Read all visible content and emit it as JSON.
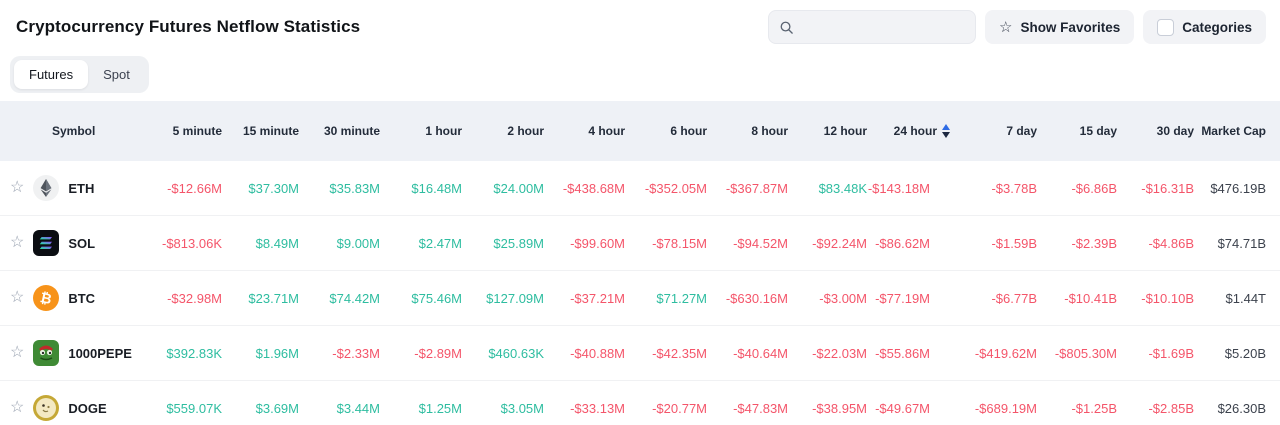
{
  "page": {
    "title": "Cryptocurrency Futures Netflow Statistics"
  },
  "controls": {
    "search": {
      "placeholder": "",
      "value": "",
      "icon": "search-icon"
    },
    "show_favorites": {
      "label": "Show Favorites",
      "icon": "star-icon"
    },
    "categories": {
      "label": "Categories",
      "checked": false
    }
  },
  "tabs": [
    {
      "label": "Futures",
      "active": true
    },
    {
      "label": "Spot",
      "active": false
    }
  ],
  "table": {
    "columns": [
      "Symbol",
      "5 minute",
      "15 minute",
      "30 minute",
      "1 hour",
      "2 hour",
      "4 hour",
      "6 hour",
      "8 hour",
      "12 hour",
      "24 hour",
      "7 day",
      "15 day",
      "30 day",
      "Market Cap"
    ],
    "sorted_column": "24 hour",
    "rows": [
      {
        "symbol": "ETH",
        "icon": "eth-icon",
        "favorited": false,
        "values": [
          "-$12.66M",
          "$37.30M",
          "$35.83M",
          "$16.48M",
          "$24.00M",
          "-$438.68M",
          "-$352.05M",
          "-$367.87M",
          "$83.48K",
          "-$143.18M",
          "-$3.78B",
          "-$6.86B",
          "-$16.31B"
        ],
        "market_cap": "$476.19B"
      },
      {
        "symbol": "SOL",
        "icon": "sol-icon",
        "favorited": false,
        "values": [
          "-$813.06K",
          "$8.49M",
          "$9.00M",
          "$2.47M",
          "$25.89M",
          "-$99.60M",
          "-$78.15M",
          "-$94.52M",
          "-$92.24M",
          "-$86.62M",
          "-$1.59B",
          "-$2.39B",
          "-$4.86B"
        ],
        "market_cap": "$74.71B"
      },
      {
        "symbol": "BTC",
        "icon": "btc-icon",
        "favorited": false,
        "values": [
          "-$32.98M",
          "$23.71M",
          "$74.42M",
          "$75.46M",
          "$127.09M",
          "-$37.21M",
          "$71.27M",
          "-$630.16M",
          "-$3.00M",
          "-$77.19M",
          "-$6.77B",
          "-$10.41B",
          "-$10.10B"
        ],
        "market_cap": "$1.44T"
      },
      {
        "symbol": "1000PEPE",
        "icon": "pepe-icon",
        "favorited": false,
        "values": [
          "$392.83K",
          "$1.96M",
          "-$2.33M",
          "-$2.89M",
          "$460.63K",
          "-$40.88M",
          "-$42.35M",
          "-$40.64M",
          "-$22.03M",
          "-$55.86M",
          "-$419.62M",
          "-$805.30M",
          "-$1.69B"
        ],
        "market_cap": "$5.20B"
      },
      {
        "symbol": "DOGE",
        "icon": "doge-icon",
        "favorited": false,
        "values": [
          "$559.07K",
          "$3.69M",
          "$3.44M",
          "$1.25M",
          "$3.05M",
          "-$33.13M",
          "-$20.77M",
          "-$47.83M",
          "-$38.95M",
          "-$49.67M",
          "-$689.19M",
          "-$1.25B",
          "-$2.85B"
        ],
        "market_cap": "$26.30B"
      }
    ]
  },
  "colors": {
    "positive": "#2ebda0",
    "negative": "#f4556a",
    "sort_active": "#2e6be5",
    "header_bg": "#eef1f6"
  }
}
